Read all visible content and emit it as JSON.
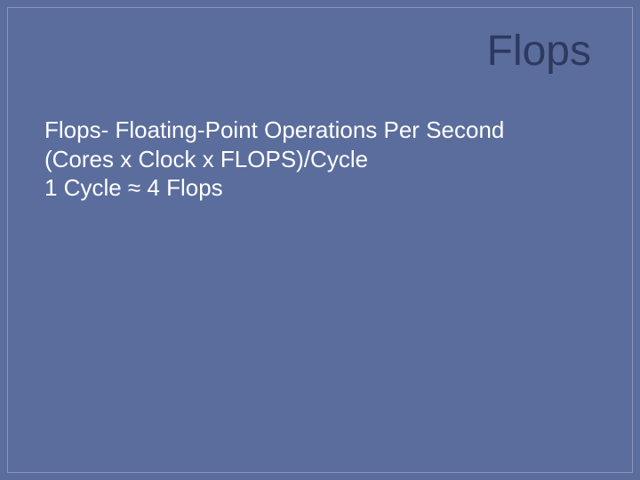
{
  "slide": {
    "background_color": "#5a6d9c",
    "border_color": "#8a97bb",
    "title": {
      "text": "Flops",
      "color": "#2d3a5f",
      "fontsize": 48,
      "align": "right"
    },
    "body": {
      "color": "#ffffff",
      "fontsize": 26,
      "lines": [
        "Flops- Floating-Point Operations Per Second",
        "(Cores x Clock x FLOPS)/Cycle",
        "1 Cycle ≈ 4 Flops"
      ],
      "line1": "Flops- Floating-Point Operations Per Second",
      "line2": "(Cores x Clock x FLOPS)/Cycle",
      "line3": "1 Cycle ≈ 4 Flops"
    }
  }
}
